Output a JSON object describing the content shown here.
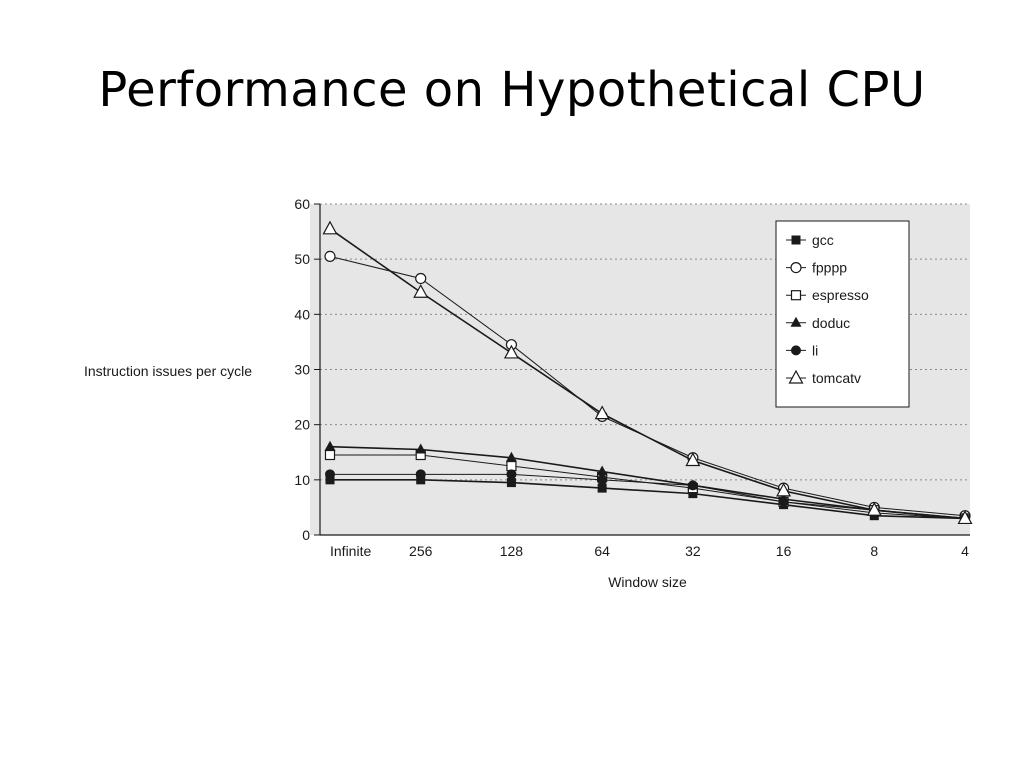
{
  "slide": {
    "title": "Performance on Hypothetical CPU"
  },
  "colors": {
    "plot_background": "#e6e6e6",
    "grid": "#8a8a8a",
    "ink": "#1a1a1a",
    "slide_background": "#ffffff"
  },
  "chart_data": {
    "type": "line",
    "title": "",
    "xlabel": "Window size",
    "ylabel": "Instruction issues per cycle",
    "categories": [
      "Infinite",
      "256",
      "128",
      "64",
      "32",
      "16",
      "8",
      "4"
    ],
    "ylim": [
      0,
      60
    ],
    "yticks": [
      0,
      10,
      20,
      30,
      40,
      50,
      60
    ],
    "grid": "horizontal dotted",
    "legend_position": "top-right",
    "series": [
      {
        "name": "gcc",
        "marker": "filled-square",
        "values": [
          10,
          10,
          9.5,
          8.5,
          7.5,
          5.5,
          3.5,
          3
        ]
      },
      {
        "name": "fpppp",
        "marker": "open-circle",
        "values": [
          50.5,
          46.5,
          34.5,
          21.5,
          14,
          8.5,
          5,
          3.5
        ]
      },
      {
        "name": "espresso",
        "marker": "open-square",
        "values": [
          14.5,
          14.5,
          12.5,
          10.5,
          8.5,
          6,
          4.5,
          3
        ]
      },
      {
        "name": "doduc",
        "marker": "filled-triangle",
        "values": [
          16,
          15.5,
          14,
          11.5,
          9,
          6.5,
          4.5,
          3
        ]
      },
      {
        "name": "li",
        "marker": "filled-circle",
        "values": [
          11,
          11,
          11,
          10,
          9,
          6,
          4,
          3
        ]
      },
      {
        "name": "tomcatv",
        "marker": "open-triangle",
        "values": [
          55.5,
          44,
          33,
          22,
          13.5,
          8,
          4.5,
          3
        ]
      }
    ]
  }
}
